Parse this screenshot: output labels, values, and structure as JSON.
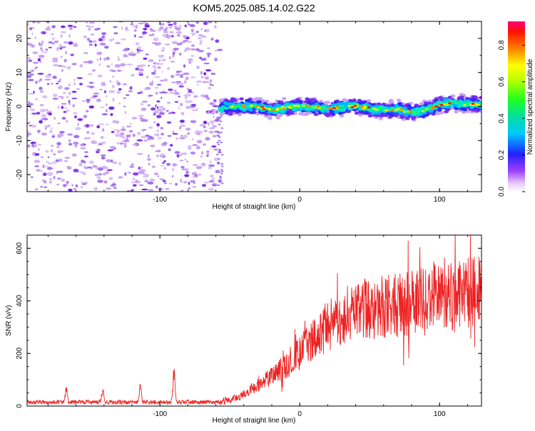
{
  "title": "KOM5.2025.085.14.02.G22",
  "chart_data": [
    {
      "type": "heatmap",
      "xlabel": "Height of straight line (km)",
      "ylabel": "Frequency (Hz)",
      "xlim": [
        -195,
        130
      ],
      "ylim": [
        -25,
        25
      ],
      "x_ticks": [
        -100,
        0,
        100
      ],
      "y_ticks": [
        -20,
        -10,
        0,
        10,
        20
      ],
      "colorbar": {
        "label": "Normalized spectral amplitude",
        "range": [
          0.0,
          0.93
        ],
        "ticks": [
          0.0,
          0.2,
          0.4,
          0.6,
          0.8
        ]
      },
      "noise_region_x": [
        -195,
        -57
      ],
      "signal_track": {
        "x": [
          -57,
          -45,
          -30,
          -20,
          -10,
          0,
          10,
          20,
          30,
          40,
          50,
          60,
          70,
          80,
          90,
          100,
          110,
          120,
          130
        ],
        "freq": [
          -0.5,
          0.2,
          0.0,
          -1.2,
          -0.3,
          0.1,
          0.0,
          -0.7,
          -0.3,
          0.2,
          -0.6,
          -1.0,
          -0.8,
          -1.8,
          -1.0,
          0.6,
          0.9,
          0.7,
          0.5
        ]
      }
    },
    {
      "type": "line",
      "xlabel": "Height of straight line (km)",
      "ylabel": "SNR (v/v)",
      "xlim": [
        -195,
        130
      ],
      "ylim": [
        0,
        650
      ],
      "x_ticks": [
        -100,
        0,
        100
      ],
      "y_ticks": [
        0,
        200,
        400,
        600
      ],
      "color": "#ee2222",
      "trend_x": [
        -195,
        -60,
        -45,
        -30,
        -10,
        0,
        10,
        20,
        30,
        40,
        60,
        80,
        100,
        130
      ],
      "trend_y": [
        15,
        15,
        30,
        80,
        150,
        200,
        260,
        300,
        340,
        360,
        380,
        390,
        410,
        440
      ],
      "spikes": [
        {
          "x": -167,
          "y": 75
        },
        {
          "x": -141,
          "y": 75
        },
        {
          "x": -114,
          "y": 95
        },
        {
          "x": -90,
          "y": 155
        }
      ]
    }
  ]
}
